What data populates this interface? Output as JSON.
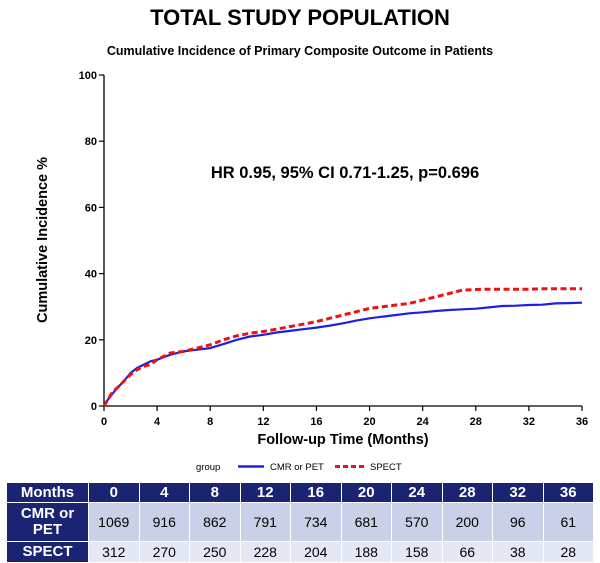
{
  "page_title": "TOTAL STUDY POPULATION",
  "chart_data": {
    "type": "line",
    "title": "Cumulative Incidence of Primary Composite Outcome in Patients",
    "xlabel": "Follow-up Time (Months)",
    "ylabel": "Cumulative Incidence %",
    "xlim": [
      0,
      36
    ],
    "ylim": [
      0,
      100
    ],
    "xticks": [
      0,
      4,
      8,
      12,
      16,
      20,
      24,
      28,
      32,
      36
    ],
    "yticks": [
      0,
      20,
      40,
      60,
      80,
      100
    ],
    "annotation": "HR 0.95, 95% CI 0.71-1.25, p=0.696",
    "legend_title": "group",
    "legend_position": "bottom",
    "series": [
      {
        "name": "CMR or PET",
        "color": "#1f1fe0",
        "style": "solid",
        "x": [
          0,
          0.3,
          0.6,
          1,
          1.5,
          2,
          2.5,
          3,
          3.5,
          4,
          5,
          6,
          7,
          8,
          9,
          10,
          11,
          12,
          13,
          14,
          15,
          16,
          17,
          18,
          19,
          20,
          21,
          22,
          23,
          24,
          25,
          26,
          27,
          28,
          29,
          30,
          31,
          32,
          33,
          34,
          35,
          36
        ],
        "y": [
          0,
          2,
          3.5,
          5.5,
          7.5,
          10,
          11.5,
          12.5,
          13.5,
          14,
          15.5,
          16.5,
          17,
          17.5,
          18.7,
          20,
          21,
          21.5,
          22.2,
          22.7,
          23.2,
          23.7,
          24.3,
          25,
          25.8,
          26.5,
          27,
          27.5,
          28,
          28.3,
          28.7,
          29,
          29.2,
          29.4,
          29.8,
          30.2,
          30.3,
          30.5,
          30.6,
          31,
          31.1,
          31.2
        ]
      },
      {
        "name": "SPECT",
        "color": "#ee1111",
        "style": "dashed",
        "x": [
          0,
          0.3,
          0.6,
          1,
          1.5,
          2,
          2.5,
          3,
          3.5,
          4,
          5,
          6,
          7,
          8,
          9,
          10,
          11,
          12,
          13,
          14,
          15,
          16,
          17,
          18,
          19,
          20,
          21,
          22,
          23,
          24,
          25,
          26,
          27,
          28,
          29,
          30,
          31,
          32,
          33,
          34,
          35,
          36
        ],
        "y": [
          0,
          2,
          4,
          5.5,
          7.5,
          9.5,
          11,
          12,
          12.5,
          14,
          16,
          16.5,
          17.5,
          18.5,
          20,
          21.2,
          22,
          22.5,
          23.2,
          24,
          24.7,
          25.5,
          26.5,
          27.5,
          28.5,
          29.5,
          30,
          30.5,
          31,
          32,
          33,
          34,
          35,
          35.2,
          35.3,
          35.3,
          35.3,
          35.3,
          35.4,
          35.4,
          35.4,
          35.4
        ]
      }
    ]
  },
  "risk_table": {
    "header_label": "Months",
    "months": [
      "0",
      "4",
      "8",
      "12",
      "16",
      "20",
      "24",
      "28",
      "32",
      "36"
    ],
    "rows": [
      {
        "label_line1": "CMR or",
        "label_line2": "PET",
        "values": [
          "1069",
          "916",
          "862",
          "791",
          "734",
          "681",
          "570",
          "200",
          "96",
          "61"
        ]
      },
      {
        "label_line1": "SPECT",
        "label_line2": "",
        "values": [
          "312",
          "270",
          "250",
          "228",
          "204",
          "188",
          "158",
          "66",
          "38",
          "28"
        ]
      }
    ]
  }
}
